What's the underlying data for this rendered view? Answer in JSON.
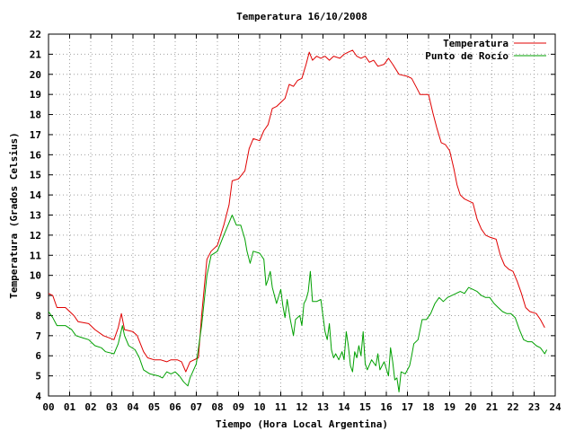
{
  "chart_data": {
    "type": "line",
    "title": "Temperatura 16/10/2008",
    "xlabel": "Tiempo (Hora Local Argentina)",
    "ylabel": "Temperatura (Grados Celsius)",
    "xlim": [
      0,
      24
    ],
    "ylim": [
      4,
      22
    ],
    "grid": true,
    "legend_position": "top-right",
    "x_ticks": [
      "00",
      "01",
      "02",
      "03",
      "04",
      "05",
      "06",
      "07",
      "08",
      "09",
      "10",
      "11",
      "12",
      "13",
      "14",
      "15",
      "16",
      "17",
      "18",
      "19",
      "20",
      "21",
      "22",
      "23",
      "24"
    ],
    "y_ticks": [
      4,
      5,
      6,
      7,
      8,
      9,
      10,
      11,
      12,
      13,
      14,
      15,
      16,
      17,
      18,
      19,
      20,
      21,
      22
    ],
    "series": [
      {
        "name": "Temperatura",
        "color": "#e00000",
        "points": [
          [
            0.0,
            9.1
          ],
          [
            0.2,
            9.0
          ],
          [
            0.4,
            8.4
          ],
          [
            0.8,
            8.4
          ],
          [
            1.2,
            8.0
          ],
          [
            1.4,
            7.7
          ],
          [
            1.9,
            7.6
          ],
          [
            2.2,
            7.3
          ],
          [
            2.6,
            7.0
          ],
          [
            3.1,
            6.8
          ],
          [
            3.3,
            7.4
          ],
          [
            3.45,
            8.1
          ],
          [
            3.6,
            7.3
          ],
          [
            4.0,
            7.2
          ],
          [
            4.2,
            7.0
          ],
          [
            4.5,
            6.2
          ],
          [
            4.7,
            5.9
          ],
          [
            5.0,
            5.8
          ],
          [
            5.3,
            5.8
          ],
          [
            5.6,
            5.7
          ],
          [
            5.8,
            5.8
          ],
          [
            6.1,
            5.8
          ],
          [
            6.3,
            5.7
          ],
          [
            6.5,
            5.2
          ],
          [
            6.7,
            5.7
          ],
          [
            7.1,
            5.9
          ],
          [
            7.25,
            8.0
          ],
          [
            7.5,
            10.8
          ],
          [
            7.7,
            11.2
          ],
          [
            8.0,
            11.5
          ],
          [
            8.3,
            12.5
          ],
          [
            8.55,
            13.5
          ],
          [
            8.7,
            14.7
          ],
          [
            9.0,
            14.8
          ],
          [
            9.3,
            15.2
          ],
          [
            9.5,
            16.3
          ],
          [
            9.7,
            16.8
          ],
          [
            10.0,
            16.7
          ],
          [
            10.2,
            17.2
          ],
          [
            10.4,
            17.5
          ],
          [
            10.6,
            18.3
          ],
          [
            10.8,
            18.4
          ],
          [
            11.0,
            18.6
          ],
          [
            11.2,
            18.8
          ],
          [
            11.4,
            19.5
          ],
          [
            11.6,
            19.4
          ],
          [
            11.8,
            19.7
          ],
          [
            12.0,
            19.8
          ],
          [
            12.2,
            20.5
          ],
          [
            12.35,
            21.1
          ],
          [
            12.5,
            20.7
          ],
          [
            12.7,
            20.9
          ],
          [
            12.9,
            20.8
          ],
          [
            13.1,
            20.9
          ],
          [
            13.3,
            20.7
          ],
          [
            13.5,
            20.9
          ],
          [
            13.8,
            20.8
          ],
          [
            14.0,
            21.0
          ],
          [
            14.2,
            21.1
          ],
          [
            14.4,
            21.2
          ],
          [
            14.6,
            20.9
          ],
          [
            14.8,
            20.8
          ],
          [
            15.0,
            20.9
          ],
          [
            15.2,
            20.6
          ],
          [
            15.4,
            20.7
          ],
          [
            15.6,
            20.4
          ],
          [
            15.9,
            20.5
          ],
          [
            16.1,
            20.8
          ],
          [
            16.3,
            20.5
          ],
          [
            16.6,
            20.0
          ],
          [
            17.0,
            19.9
          ],
          [
            17.2,
            19.8
          ],
          [
            17.4,
            19.4
          ],
          [
            17.6,
            19.0
          ],
          [
            18.0,
            19.0
          ],
          [
            18.2,
            18.1
          ],
          [
            18.4,
            17.3
          ],
          [
            18.6,
            16.6
          ],
          [
            18.8,
            16.5
          ],
          [
            19.0,
            16.2
          ],
          [
            19.2,
            15.3
          ],
          [
            19.35,
            14.5
          ],
          [
            19.5,
            14.0
          ],
          [
            19.7,
            13.8
          ],
          [
            19.9,
            13.7
          ],
          [
            20.1,
            13.6
          ],
          [
            20.3,
            12.8
          ],
          [
            20.5,
            12.3
          ],
          [
            20.7,
            12.0
          ],
          [
            20.9,
            11.9
          ],
          [
            21.2,
            11.8
          ],
          [
            21.4,
            11.0
          ],
          [
            21.6,
            10.5
          ],
          [
            21.8,
            10.3
          ],
          [
            22.0,
            10.2
          ],
          [
            22.2,
            9.7
          ],
          [
            22.4,
            9.1
          ],
          [
            22.6,
            8.4
          ],
          [
            22.8,
            8.2
          ],
          [
            23.1,
            8.1
          ],
          [
            23.3,
            7.8
          ],
          [
            23.5,
            7.4
          ]
        ]
      },
      {
        "name": "Punto de Rocío",
        "color": "#00a000",
        "points": [
          [
            0.0,
            8.2
          ],
          [
            0.2,
            7.9
          ],
          [
            0.4,
            7.5
          ],
          [
            0.8,
            7.5
          ],
          [
            1.1,
            7.3
          ],
          [
            1.3,
            7.0
          ],
          [
            1.6,
            6.9
          ],
          [
            1.9,
            6.8
          ],
          [
            2.2,
            6.5
          ],
          [
            2.5,
            6.4
          ],
          [
            2.7,
            6.2
          ],
          [
            3.1,
            6.1
          ],
          [
            3.3,
            6.6
          ],
          [
            3.5,
            7.5
          ],
          [
            3.6,
            7.0
          ],
          [
            3.8,
            6.5
          ],
          [
            4.1,
            6.3
          ],
          [
            4.3,
            5.9
          ],
          [
            4.5,
            5.3
          ],
          [
            4.8,
            5.1
          ],
          [
            5.2,
            5.0
          ],
          [
            5.4,
            4.9
          ],
          [
            5.6,
            5.2
          ],
          [
            5.8,
            5.1
          ],
          [
            6.0,
            5.2
          ],
          [
            6.2,
            5.0
          ],
          [
            6.4,
            4.7
          ],
          [
            6.6,
            4.5
          ],
          [
            6.7,
            4.9
          ],
          [
            7.0,
            5.6
          ],
          [
            7.25,
            7.5
          ],
          [
            7.5,
            10.0
          ],
          [
            7.7,
            11.0
          ],
          [
            8.0,
            11.2
          ],
          [
            8.3,
            12.0
          ],
          [
            8.5,
            12.5
          ],
          [
            8.7,
            13.0
          ],
          [
            8.9,
            12.5
          ],
          [
            9.1,
            12.5
          ],
          [
            9.3,
            11.8
          ],
          [
            9.4,
            11.2
          ],
          [
            9.55,
            10.6
          ],
          [
            9.7,
            11.2
          ],
          [
            10.0,
            11.1
          ],
          [
            10.2,
            10.8
          ],
          [
            10.3,
            9.5
          ],
          [
            10.4,
            9.8
          ],
          [
            10.5,
            10.2
          ],
          [
            10.6,
            9.4
          ],
          [
            10.8,
            8.6
          ],
          [
            11.0,
            9.3
          ],
          [
            11.1,
            8.5
          ],
          [
            11.2,
            7.9
          ],
          [
            11.3,
            8.8
          ],
          [
            11.45,
            7.8
          ],
          [
            11.6,
            7.0
          ],
          [
            11.7,
            7.8
          ],
          [
            11.9,
            8.0
          ],
          [
            12.0,
            7.5
          ],
          [
            12.1,
            8.6
          ],
          [
            12.2,
            8.8
          ],
          [
            12.3,
            9.2
          ],
          [
            12.4,
            10.2
          ],
          [
            12.5,
            8.7
          ],
          [
            12.7,
            8.7
          ],
          [
            12.9,
            8.8
          ],
          [
            13.1,
            7.2
          ],
          [
            13.2,
            6.8
          ],
          [
            13.3,
            7.6
          ],
          [
            13.4,
            6.3
          ],
          [
            13.5,
            5.9
          ],
          [
            13.6,
            6.1
          ],
          [
            13.75,
            5.8
          ],
          [
            13.9,
            6.2
          ],
          [
            14.0,
            5.8
          ],
          [
            14.1,
            7.2
          ],
          [
            14.2,
            6.5
          ],
          [
            14.3,
            5.5
          ],
          [
            14.4,
            5.2
          ],
          [
            14.5,
            6.2
          ],
          [
            14.6,
            5.9
          ],
          [
            14.7,
            6.5
          ],
          [
            14.8,
            6.0
          ],
          [
            14.9,
            7.2
          ],
          [
            15.0,
            5.6
          ],
          [
            15.1,
            5.3
          ],
          [
            15.3,
            5.8
          ],
          [
            15.5,
            5.5
          ],
          [
            15.6,
            6.1
          ],
          [
            15.7,
            5.3
          ],
          [
            15.9,
            5.7
          ],
          [
            16.1,
            5.0
          ],
          [
            16.2,
            6.4
          ],
          [
            16.3,
            5.7
          ],
          [
            16.4,
            4.8
          ],
          [
            16.5,
            4.9
          ],
          [
            16.6,
            4.2
          ],
          [
            16.7,
            5.2
          ],
          [
            16.9,
            5.1
          ],
          [
            17.1,
            5.5
          ],
          [
            17.2,
            6.0
          ],
          [
            17.3,
            6.6
          ],
          [
            17.5,
            6.8
          ],
          [
            17.7,
            7.8
          ],
          [
            17.9,
            7.8
          ],
          [
            18.1,
            8.1
          ],
          [
            18.3,
            8.6
          ],
          [
            18.5,
            8.9
          ],
          [
            18.7,
            8.7
          ],
          [
            18.9,
            8.9
          ],
          [
            19.1,
            9.0
          ],
          [
            19.3,
            9.1
          ],
          [
            19.5,
            9.2
          ],
          [
            19.7,
            9.1
          ],
          [
            19.9,
            9.4
          ],
          [
            20.1,
            9.3
          ],
          [
            20.3,
            9.2
          ],
          [
            20.5,
            9.0
          ],
          [
            20.7,
            8.9
          ],
          [
            20.9,
            8.9
          ],
          [
            21.1,
            8.6
          ],
          [
            21.3,
            8.4
          ],
          [
            21.5,
            8.2
          ],
          [
            21.7,
            8.1
          ],
          [
            21.9,
            8.1
          ],
          [
            22.1,
            7.9
          ],
          [
            22.3,
            7.3
          ],
          [
            22.5,
            6.8
          ],
          [
            22.7,
            6.7
          ],
          [
            22.9,
            6.7
          ],
          [
            23.1,
            6.5
          ],
          [
            23.3,
            6.4
          ],
          [
            23.5,
            6.1
          ],
          [
            23.6,
            6.3
          ]
        ]
      }
    ]
  }
}
